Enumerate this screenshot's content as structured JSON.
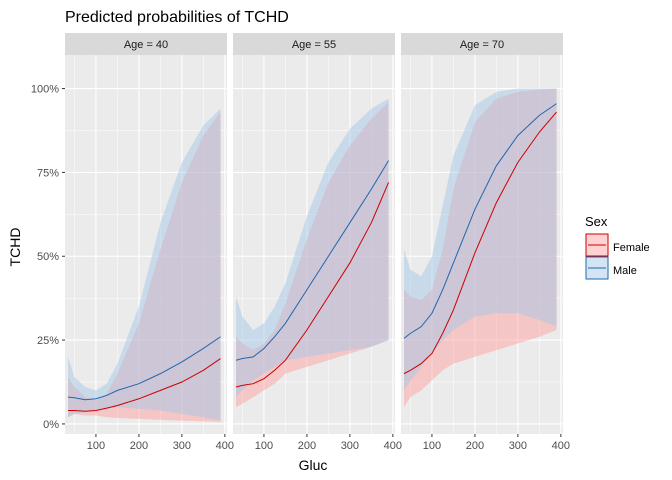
{
  "chart_data": {
    "type": "line",
    "title": "Predicted probabilities of TCHD",
    "xlabel": "Gluc",
    "ylabel": "TCHD",
    "xlim": [
      28,
      405
    ],
    "ylim": [
      -0.03,
      1.1
    ],
    "x_ticks": [
      100,
      200,
      300,
      400
    ],
    "x_tick_labels": [
      "100",
      "200",
      "300",
      "400"
    ],
    "y_ticks": [
      0,
      0.25,
      0.5,
      0.75,
      1.0
    ],
    "y_tick_labels": [
      "0%",
      "25%",
      "50%",
      "75%",
      "100%"
    ],
    "grid": true,
    "legend": {
      "title": "Sex",
      "position": "right",
      "entries": [
        "Female",
        "Male"
      ]
    },
    "colors": {
      "Female": "#cc0000",
      "Male": "#2166ac",
      "Female_band": "#ff9a9a",
      "Male_band": "#9ec5e8",
      "panel_bg": "#ebebeb",
      "strip_bg": "#d9d9d9",
      "grid": "#ffffff"
    },
    "facets": [
      {
        "label": "Age = 40",
        "series": [
          {
            "name": "Female",
            "x": [
              35,
              50,
              75,
              100,
              125,
              150,
              200,
              250,
              300,
              350,
              390
            ],
            "y": [
              0.04,
              0.04,
              0.038,
              0.04,
              0.047,
              0.055,
              0.075,
              0.1,
              0.125,
              0.16,
              0.195
            ],
            "lower": [
              0.02,
              0.03,
              0.025,
              0.025,
              0.02,
              0.018,
              0.015,
              0.012,
              0.01,
              0.008,
              0.006
            ],
            "upper": [
              0.14,
              0.11,
              0.08,
              0.07,
              0.09,
              0.15,
              0.3,
              0.52,
              0.72,
              0.86,
              0.93
            ]
          },
          {
            "name": "Male",
            "x": [
              35,
              50,
              75,
              100,
              125,
              150,
              200,
              250,
              300,
              350,
              390
            ],
            "y": [
              0.08,
              0.078,
              0.072,
              0.075,
              0.085,
              0.1,
              0.12,
              0.15,
              0.185,
              0.225,
              0.26
            ],
            "lower": [
              0.02,
              0.03,
              0.035,
              0.04,
              0.045,
              0.05,
              0.045,
              0.04,
              0.03,
              0.02,
              0.01
            ],
            "upper": [
              0.2,
              0.14,
              0.11,
              0.1,
              0.12,
              0.18,
              0.35,
              0.6,
              0.78,
              0.89,
              0.94
            ]
          }
        ]
      },
      {
        "label": "Age = 55",
        "series": [
          {
            "name": "Female",
            "x": [
              35,
              50,
              75,
              100,
              125,
              150,
              200,
              250,
              300,
              350,
              390
            ],
            "y": [
              0.11,
              0.115,
              0.12,
              0.135,
              0.16,
              0.19,
              0.28,
              0.38,
              0.48,
              0.6,
              0.72
            ],
            "lower": [
              0.05,
              0.06,
              0.08,
              0.1,
              0.12,
              0.15,
              0.17,
              0.19,
              0.21,
              0.23,
              0.25
            ],
            "upper": [
              0.26,
              0.24,
              0.22,
              0.24,
              0.28,
              0.36,
              0.55,
              0.72,
              0.83,
              0.91,
              0.96
            ]
          },
          {
            "name": "Male",
            "x": [
              35,
              50,
              75,
              100,
              125,
              150,
              200,
              250,
              300,
              350,
              390
            ],
            "y": [
              0.19,
              0.195,
              0.2,
              0.225,
              0.26,
              0.3,
              0.4,
              0.5,
              0.6,
              0.7,
              0.785
            ],
            "lower": [
              0.08,
              0.1,
              0.13,
              0.15,
              0.17,
              0.19,
              0.2,
              0.21,
              0.22,
              0.23,
              0.25
            ],
            "upper": [
              0.38,
              0.32,
              0.28,
              0.3,
              0.35,
              0.42,
              0.62,
              0.78,
              0.88,
              0.94,
              0.97
            ]
          }
        ]
      },
      {
        "label": "Age = 70",
        "series": [
          {
            "name": "Female",
            "x": [
              35,
              50,
              75,
              100,
              125,
              150,
              200,
              250,
              300,
              350,
              390
            ],
            "y": [
              0.15,
              0.16,
              0.18,
              0.21,
              0.27,
              0.34,
              0.51,
              0.66,
              0.78,
              0.87,
              0.93
            ],
            "lower": [
              0.05,
              0.08,
              0.1,
              0.13,
              0.16,
              0.18,
              0.2,
              0.22,
              0.24,
              0.26,
              0.28
            ],
            "upper": [
              0.4,
              0.38,
              0.37,
              0.4,
              0.52,
              0.7,
              0.9,
              0.97,
              0.99,
              0.997,
              1.0
            ]
          },
          {
            "name": "Male",
            "x": [
              35,
              50,
              75,
              100,
              125,
              150,
              200,
              250,
              300,
              350,
              390
            ],
            "y": [
              0.255,
              0.27,
              0.29,
              0.33,
              0.4,
              0.48,
              0.64,
              0.77,
              0.86,
              0.92,
              0.955
            ],
            "lower": [
              0.1,
              0.13,
              0.17,
              0.21,
              0.25,
              0.28,
              0.32,
              0.33,
              0.33,
              0.31,
              0.29
            ],
            "upper": [
              0.52,
              0.46,
              0.44,
              0.5,
              0.65,
              0.8,
              0.95,
              0.99,
              1.0,
              1.0,
              1.0
            ]
          }
        ]
      }
    ]
  }
}
